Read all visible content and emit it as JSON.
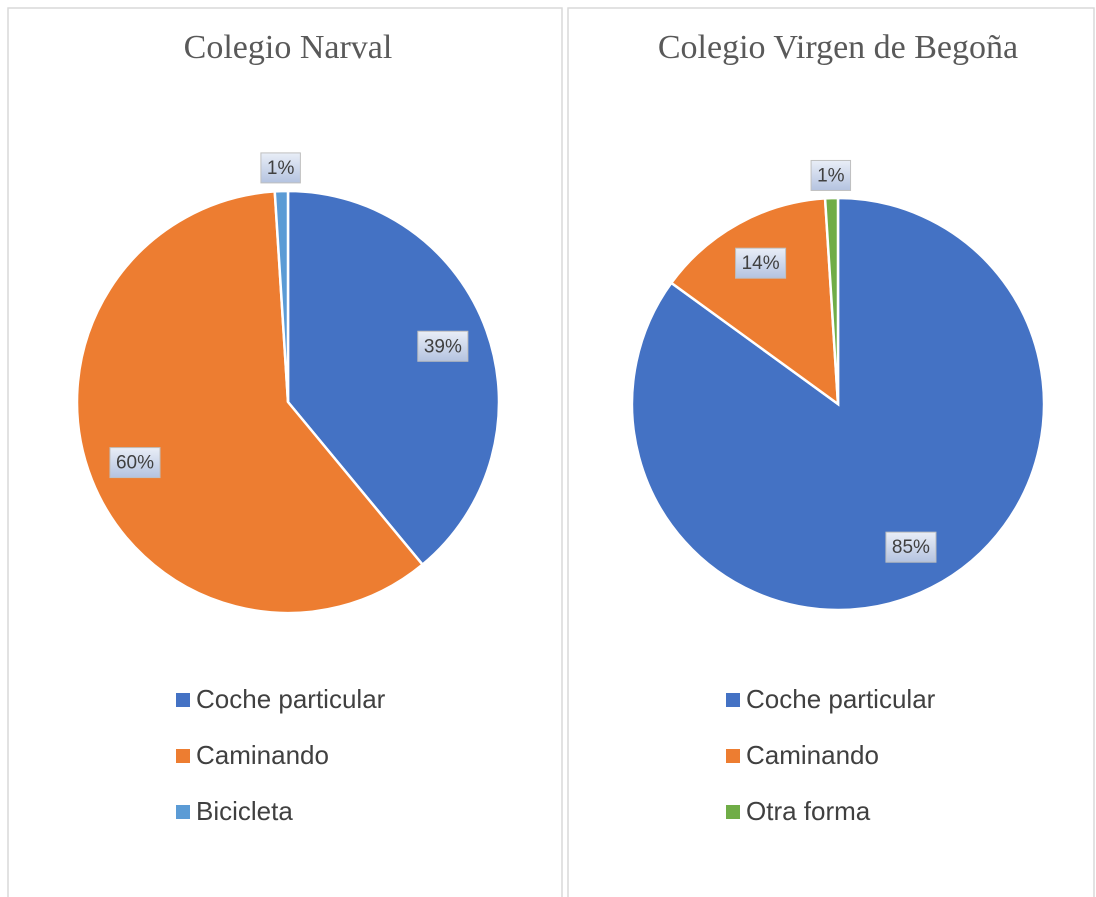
{
  "chart_data": [
    {
      "type": "pie",
      "title": "Colegio Narval",
      "categories": [
        "Coche particular",
        "Caminando",
        "Bicicleta"
      ],
      "values": [
        39,
        60,
        1
      ],
      "value_labels": [
        "39%",
        "60%",
        "1%"
      ],
      "colors": [
        "#4472c4",
        "#ed7d31",
        "#5b9bd5"
      ]
    },
    {
      "type": "pie",
      "title": "Colegio Virgen de Begoña",
      "categories": [
        "Coche particular",
        "Caminando",
        "Otra forma"
      ],
      "values": [
        85,
        14,
        1
      ],
      "value_labels": [
        "85%",
        "14%",
        "1%"
      ],
      "colors": [
        "#4472c4",
        "#ed7d31",
        "#70ad47"
      ]
    }
  ]
}
